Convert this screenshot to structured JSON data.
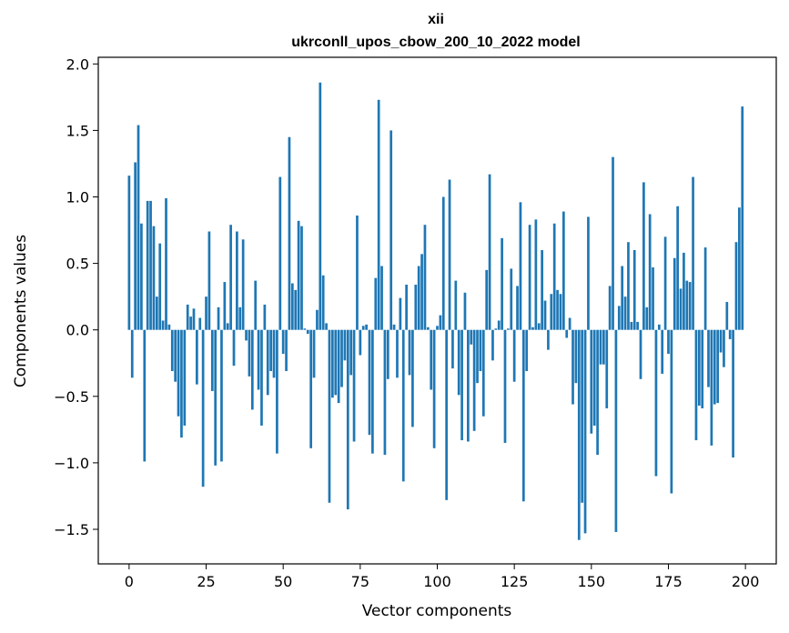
{
  "chart_data": {
    "type": "bar",
    "title": "xii",
    "subtitle": "ukrconll_upos_cbow_200_10_2022 model",
    "xlabel": "Vector components",
    "ylabel": "Components values",
    "xlim": [
      -10,
      210
    ],
    "ylim": [
      -1.76,
      2.05
    ],
    "xticks": [
      0,
      25,
      50,
      75,
      100,
      125,
      150,
      175,
      200
    ],
    "yticks": [
      -1.5,
      -1.0,
      -0.5,
      0.0,
      0.5,
      1.0,
      1.5,
      2.0
    ],
    "xtick_labels": [
      "0",
      "25",
      "50",
      "75",
      "100",
      "125",
      "150",
      "175",
      "200"
    ],
    "ytick_labels": [
      "−1.5",
      "−1.0",
      "−0.5",
      "0.0",
      "0.5",
      "1.0",
      "1.5",
      "2.0"
    ],
    "bar_color": "#1f77b4",
    "grid": false,
    "values": [
      1.16,
      -0.36,
      1.26,
      1.54,
      0.8,
      -0.99,
      0.97,
      0.97,
      0.78,
      0.25,
      0.65,
      0.07,
      0.99,
      0.04,
      -0.31,
      -0.39,
      -0.65,
      -0.81,
      -0.72,
      0.19,
      0.1,
      0.16,
      -0.41,
      0.09,
      -1.18,
      0.25,
      0.74,
      -0.46,
      -1.02,
      0.17,
      -0.99,
      0.36,
      0.05,
      0.79,
      -0.27,
      0.74,
      0.17,
      0.68,
      -0.08,
      -0.35,
      -0.6,
      0.37,
      -0.45,
      -0.72,
      0.19,
      -0.49,
      -0.31,
      -0.36,
      -0.93,
      1.15,
      -0.18,
      -0.31,
      1.45,
      0.35,
      0.3,
      0.82,
      0.78,
      0.01,
      -0.03,
      -0.89,
      -0.36,
      0.15,
      1.86,
      0.41,
      0.05,
      -1.3,
      -0.51,
      -0.49,
      -0.55,
      -0.43,
      -0.23,
      -1.35,
      -0.34,
      -0.84,
      0.86,
      -0.19,
      0.03,
      0.04,
      -0.79,
      -0.93,
      0.39,
      1.73,
      0.48,
      -0.94,
      -0.37,
      1.5,
      0.04,
      -0.36,
      0.24,
      -1.14,
      0.34,
      -0.34,
      -0.73,
      0.34,
      0.48,
      0.57,
      0.79,
      0.02,
      -0.45,
      -0.89,
      0.03,
      0.11,
      1.0,
      -1.28,
      1.13,
      -0.29,
      0.37,
      -0.49,
      -0.83,
      0.28,
      -0.84,
      -0.11,
      -0.76,
      -0.4,
      -0.31,
      -0.65,
      0.45,
      1.17,
      -0.23,
      0.01,
      0.07,
      0.69,
      -0.85,
      0.01,
      0.46,
      -0.39,
      0.33,
      0.96,
      -1.29,
      -0.31,
      0.79,
      0.02,
      0.83,
      0.05,
      0.6,
      0.22,
      -0.15,
      0.27,
      0.8,
      0.3,
      0.27,
      0.89,
      -0.06,
      0.09,
      -0.56,
      -0.4,
      -1.58,
      -1.3,
      -1.53,
      0.85,
      -0.78,
      -0.72,
      -0.94,
      -0.26,
      -0.26,
      -0.59,
      0.33,
      1.3,
      -1.52,
      0.18,
      0.48,
      0.25,
      0.66,
      0.06,
      0.6,
      0.06,
      -0.37,
      1.11,
      0.17,
      0.87,
      0.47,
      -1.1,
      0.04,
      -0.33,
      0.7,
      -0.18,
      -1.23,
      0.54,
      0.93,
      0.31,
      0.58,
      0.37,
      0.36,
      1.15,
      -0.83,
      -0.57,
      -0.59,
      0.62,
      -0.43,
      -0.87,
      -0.56,
      -0.55,
      -0.17,
      -0.28,
      0.21,
      -0.07,
      -0.96,
      0.66,
      0.92,
      1.68
    ]
  }
}
